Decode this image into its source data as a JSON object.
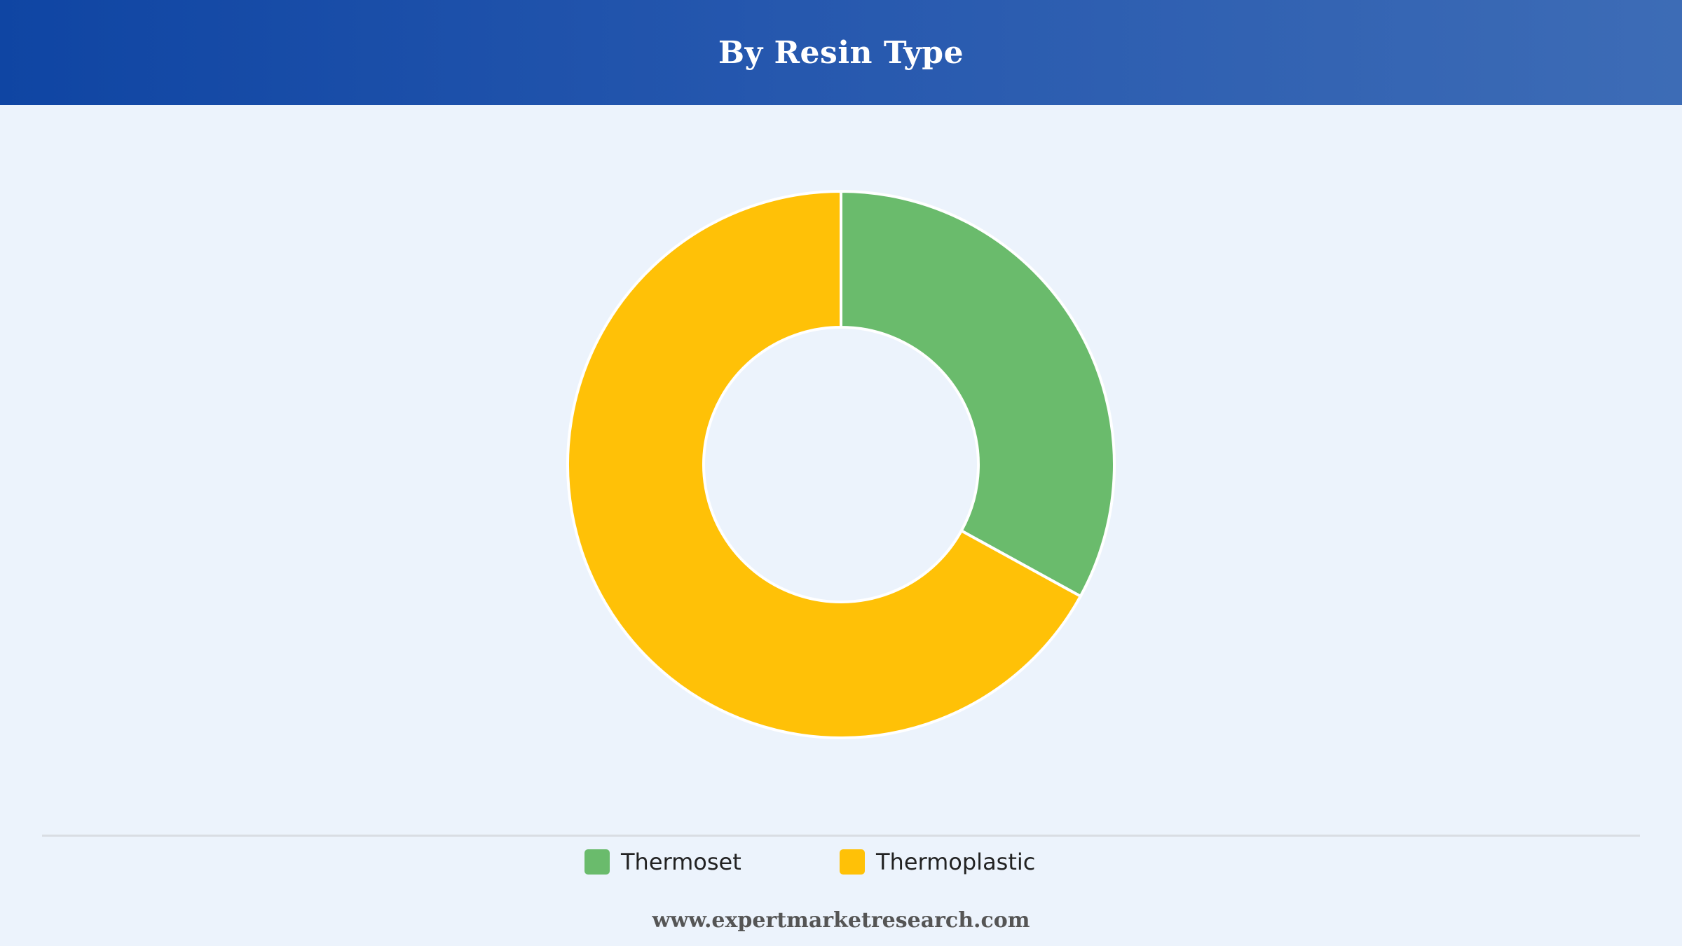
{
  "chart_data": {
    "type": "pie",
    "variant": "donut",
    "title": "By Resin Type",
    "categories": [
      "Thermoset",
      "Thermoplastic"
    ],
    "values": [
      33,
      67
    ],
    "colors": [
      "#6abb6c",
      "#ffc107"
    ],
    "legend_placement": "bottom"
  },
  "footer": {
    "source": "www.expertmarketresearch.com"
  }
}
